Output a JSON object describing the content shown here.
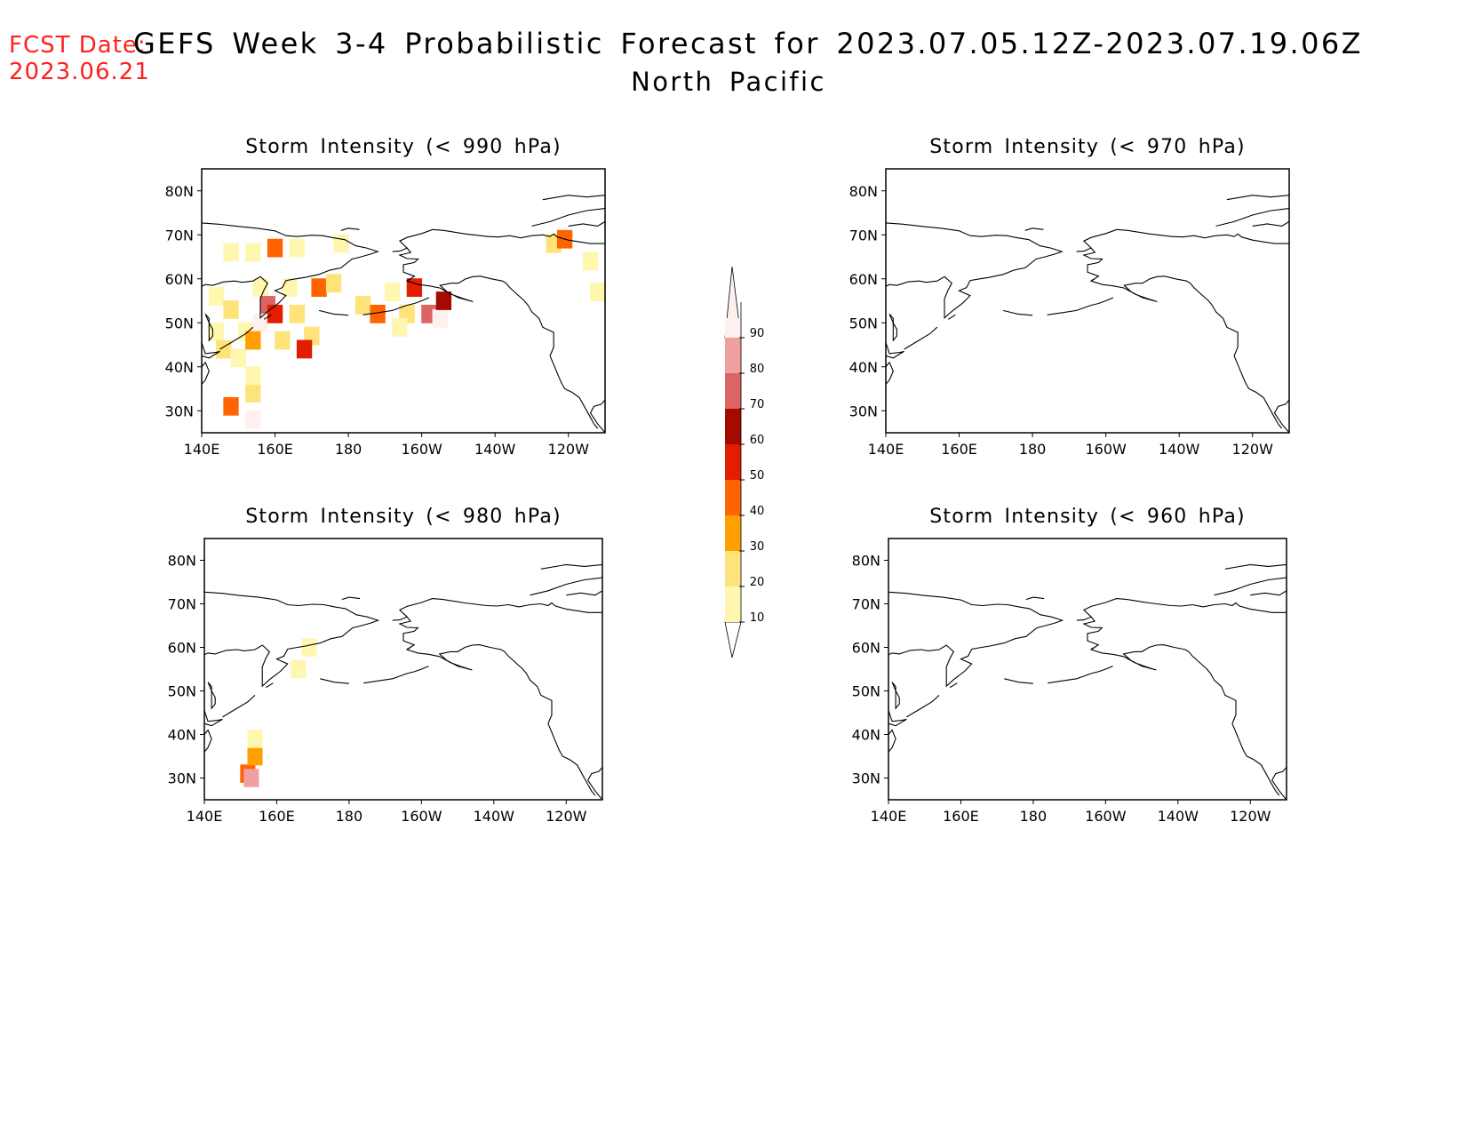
{
  "header": {
    "fcst_date_label": "FCST Date:",
    "fcst_date_value": "2023.06.21",
    "title": "GEFS Week 3-4 Probabilistic Forecast for 2023.07.05.12Z-2023.07.19.06Z",
    "subtitle": "North Pacific"
  },
  "colors": {
    "fcst_date": "#ff2020",
    "levels": [
      "#fff7b0",
      "#fde37a",
      "#ffa000",
      "#ff6400",
      "#e11e00",
      "#a50a00",
      "#dc6464",
      "#f0a0a0",
      "#fff0f0"
    ]
  },
  "axes": {
    "x_ticks": [
      "140E",
      "160E",
      "180",
      "160W",
      "140W",
      "120W"
    ],
    "y_ticks": [
      "80N",
      "70N",
      "60N",
      "50N",
      "40N",
      "30N"
    ],
    "lon_range": [
      140,
      250
    ],
    "lat_range": [
      25,
      85
    ]
  },
  "colorbar": {
    "levels": [
      "90",
      "80",
      "70",
      "60",
      "50",
      "40",
      "30",
      "20",
      "10"
    ]
  },
  "panels": [
    {
      "title": "Storm Intensity (< 990 hPa)",
      "cells": [
        {
          "lon": 144,
          "lat": 56,
          "value": 15
        },
        {
          "lon": 148,
          "lat": 53,
          "value": 20
        },
        {
          "lon": 144,
          "lat": 48,
          "value": 15
        },
        {
          "lon": 146,
          "lat": 44,
          "value": 25
        },
        {
          "lon": 150,
          "lat": 42,
          "value": 15
        },
        {
          "lon": 152,
          "lat": 48,
          "value": 10
        },
        {
          "lon": 148,
          "lat": 66,
          "value": 10
        },
        {
          "lon": 154,
          "lat": 66,
          "value": 15
        },
        {
          "lon": 160,
          "lat": 67,
          "value": 45
        },
        {
          "lon": 166,
          "lat": 67,
          "value": 10
        },
        {
          "lon": 156,
          "lat": 58,
          "value": 15
        },
        {
          "lon": 158,
          "lat": 54,
          "value": 75
        },
        {
          "lon": 156,
          "lat": 50,
          "value": 95
        },
        {
          "lon": 160,
          "lat": 52,
          "value": 55
        },
        {
          "lon": 154,
          "lat": 46,
          "value": 35
        },
        {
          "lon": 162,
          "lat": 46,
          "value": 20
        },
        {
          "lon": 166,
          "lat": 52,
          "value": 25
        },
        {
          "lon": 170,
          "lat": 47,
          "value": 20
        },
        {
          "lon": 168,
          "lat": 44,
          "value": 50
        },
        {
          "lon": 172,
          "lat": 58,
          "value": 45
        },
        {
          "lon": 176,
          "lat": 59,
          "value": 20
        },
        {
          "lon": 164,
          "lat": 58,
          "value": 15
        },
        {
          "lon": 178,
          "lat": 68,
          "value": 15
        },
        {
          "lon": 184,
          "lat": 54,
          "value": 25
        },
        {
          "lon": 188,
          "lat": 52,
          "value": 45
        },
        {
          "lon": 192,
          "lat": 57,
          "value": 15
        },
        {
          "lon": 196,
          "lat": 52,
          "value": 20
        },
        {
          "lon": 198,
          "lat": 58,
          "value": 50
        },
        {
          "lon": 202,
          "lat": 52,
          "value": 75
        },
        {
          "lon": 205,
          "lat": 51,
          "value": 90
        },
        {
          "lon": 206,
          "lat": 55,
          "value": 60
        },
        {
          "lon": 194,
          "lat": 49,
          "value": 15
        },
        {
          "lon": 148,
          "lat": 31,
          "value": 45
        },
        {
          "lon": 154,
          "lat": 28,
          "value": 95
        },
        {
          "lon": 154,
          "lat": 34,
          "value": 25
        },
        {
          "lon": 154,
          "lat": 38,
          "value": 15
        },
        {
          "lon": 236,
          "lat": 68,
          "value": 25
        },
        {
          "lon": 239,
          "lat": 69,
          "value": 45
        },
        {
          "lon": 246,
          "lat": 64,
          "value": 10
        },
        {
          "lon": 248,
          "lat": 57,
          "value": 15
        }
      ]
    },
    {
      "title": "Storm Intensity (< 970 hPa)",
      "cells": []
    },
    {
      "title": "Storm Intensity (< 980 hPa)",
      "cells": [
        {
          "lon": 169,
          "lat": 60,
          "value": 10
        },
        {
          "lon": 166,
          "lat": 55,
          "value": 10
        },
        {
          "lon": 152,
          "lat": 31,
          "value": 40
        },
        {
          "lon": 153,
          "lat": 30,
          "value": 85
        },
        {
          "lon": 154,
          "lat": 35,
          "value": 30
        },
        {
          "lon": 154,
          "lat": 39,
          "value": 10
        }
      ]
    },
    {
      "title": "Storm Intensity (< 960 hPa)",
      "cells": []
    }
  ]
}
